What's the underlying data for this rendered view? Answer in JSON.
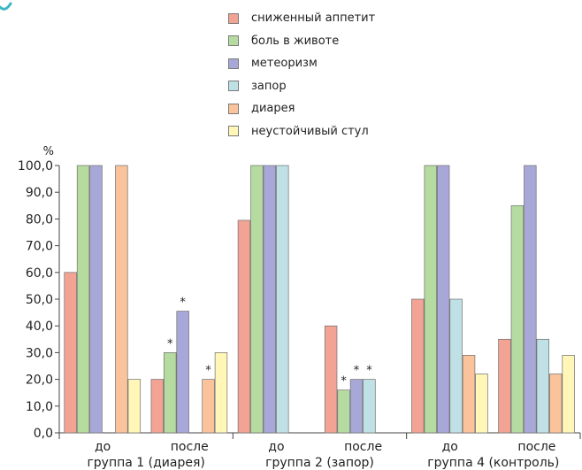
{
  "chart_data": {
    "type": "bar",
    "ylabel": "%",
    "ylim": [
      0,
      100
    ],
    "yticks": [
      "0,0",
      "10,0",
      "20,0",
      "30,0",
      "40,0",
      "50,0",
      "60,0",
      "70,0",
      "80,0",
      "90,0",
      "100,0"
    ],
    "legend_position": "top-center",
    "series": [
      {
        "name": "сниженный аппетит",
        "color": "#f2a393"
      },
      {
        "name": "боль в животе",
        "color": "#b6dba0"
      },
      {
        "name": "метеоризм",
        "color": "#a8a8d8"
      },
      {
        "name": "запор",
        "color": "#bfe1e6"
      },
      {
        "name": "диарея",
        "color": "#fbc39b"
      },
      {
        "name": "неустойчивый стул",
        "color": "#fff6b8"
      }
    ],
    "groups": [
      {
        "label": "группа 1 (диарея)",
        "subgroups": [
          {
            "label": "до",
            "values": [
              60,
              100,
              100,
              null,
              100,
              20
            ],
            "stars": [
              false,
              false,
              false,
              false,
              false,
              false
            ]
          },
          {
            "label": "после",
            "values": [
              20,
              30,
              45.5,
              null,
              20,
              30
            ],
            "stars": [
              false,
              true,
              true,
              false,
              true,
              false
            ]
          }
        ]
      },
      {
        "label": "группа 2 (запор)",
        "subgroups": [
          {
            "label": "до",
            "values": [
              79.5,
              100,
              100,
              100,
              null,
              null
            ],
            "stars": [
              false,
              false,
              false,
              false,
              false,
              false
            ]
          },
          {
            "label": "после",
            "values": [
              40,
              16,
              20,
              20,
              null,
              null
            ],
            "stars": [
              false,
              true,
              true,
              true,
              false,
              false
            ]
          }
        ]
      },
      {
        "label": "группа 4 (контроль)",
        "subgroups": [
          {
            "label": "до",
            "values": [
              50,
              100,
              100,
              50,
              29,
              22
            ],
            "stars": [
              false,
              false,
              false,
              false,
              false,
              false
            ]
          },
          {
            "label": "после",
            "values": [
              35,
              85,
              100,
              35,
              22,
              29
            ],
            "stars": [
              false,
              false,
              false,
              false,
              false,
              false
            ]
          }
        ]
      }
    ],
    "annotation_symbol": "*",
    "grid": false
  },
  "decor": {
    "corner_color": "#3ab6c5"
  }
}
